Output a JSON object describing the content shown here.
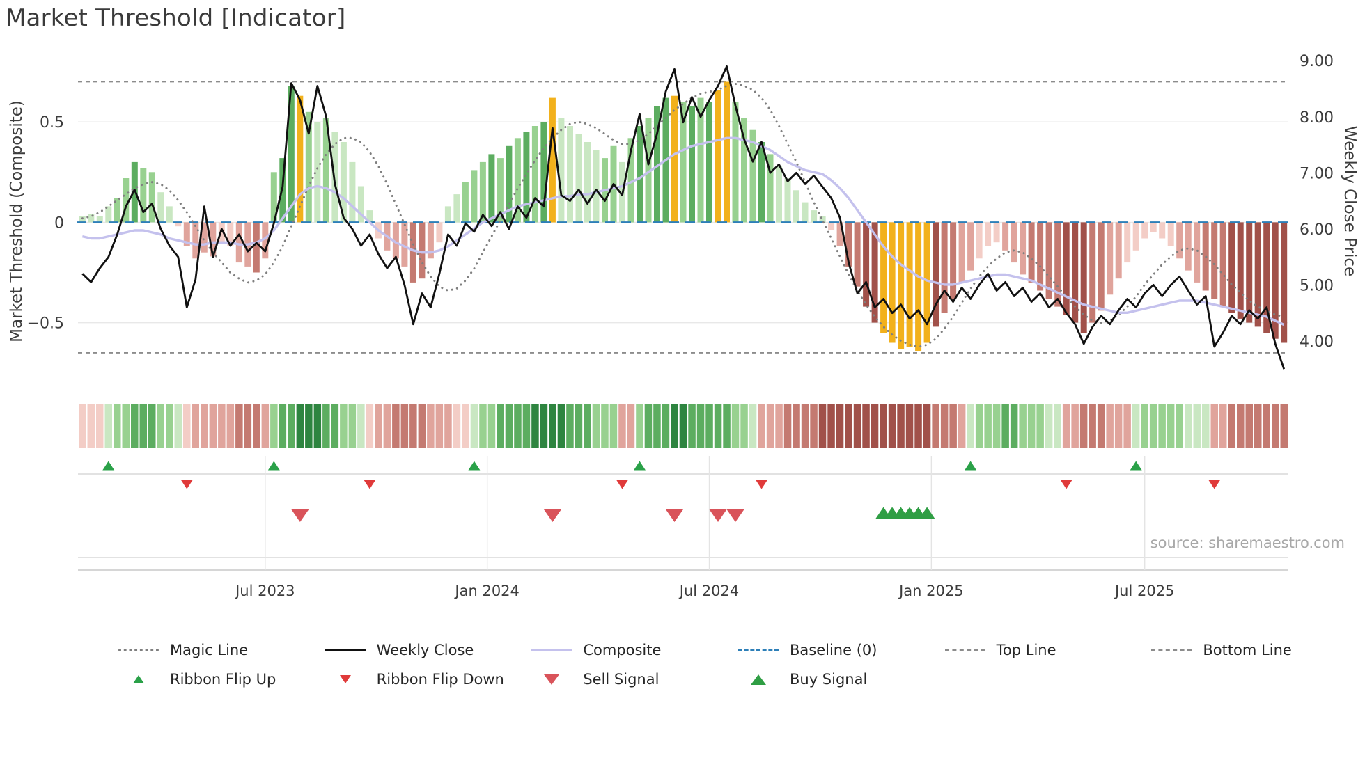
{
  "title": "Market Threshold [Indicator]",
  "source_text": "source: sharemaestro.com",
  "axes": {
    "left_title": "Market Threshold (Composite)",
    "right_title": "Weekly Close Price",
    "left_ticks": [
      {
        "v": 0.5,
        "label": "0.5"
      },
      {
        "v": 0,
        "label": "0"
      },
      {
        "v": -0.5,
        "label": "−0.5"
      }
    ],
    "right_ticks": [
      {
        "v": 9,
        "label": "9.00"
      },
      {
        "v": 8,
        "label": "8.00"
      },
      {
        "v": 7,
        "label": "7.00"
      },
      {
        "v": 6,
        "label": "6.00"
      },
      {
        "v": 5,
        "label": "5.00"
      },
      {
        "v": 4,
        "label": "4.00"
      }
    ],
    "x_ticks": [
      {
        "i": 21,
        "label": "Jul 2023"
      },
      {
        "i": 46.5,
        "label": "Jan 2024"
      },
      {
        "i": 72,
        "label": "Jul 2024"
      },
      {
        "i": 97.5,
        "label": "Jan 2025"
      },
      {
        "i": 122,
        "label": "Jul 2025"
      }
    ]
  },
  "colors": {
    "palette": {
      "g1": "#c9e7c2",
      "g2": "#98d190",
      "g3": "#5cad60",
      "g4": "#2e8540",
      "r1": "#f3cdc6",
      "r2": "#e0a49c",
      "r3": "#c47a71",
      "r4": "#a1514a",
      "gold": "#f2b11c"
    },
    "weekly_close_line": "#111111",
    "composite_line": "#c4c1ed",
    "magic_line": "#7f7f7f",
    "baseline": "#2d7fb8",
    "top_bottom_line": "#8c8c8c",
    "grid": "#e8e8e8",
    "separator": "#d9d9d9",
    "axis_spine": "#c9c9c9",
    "vgrid": "#e4e4e4",
    "tick_text": "#3d3d3d",
    "flip_up": "#2aa148",
    "flip_down": "#e03a3a",
    "sell": "#d9535a",
    "buy": "#2f9e44"
  },
  "legend": {
    "row1": [
      {
        "label": "Magic Line",
        "slug": "magic-line",
        "kind": "dotted",
        "color": "#7f7f7f"
      },
      {
        "label": "Weekly Close",
        "slug": "weekly-close",
        "kind": "solid",
        "color": "#111111"
      },
      {
        "label": "Composite",
        "slug": "composite",
        "kind": "solid",
        "color": "#c4c1ed"
      },
      {
        "label": "Baseline (0)",
        "slug": "baseline-0",
        "kind": "dashed",
        "color": "#2d7fb8"
      },
      {
        "label": "Top Line",
        "slug": "top-line",
        "kind": "dashed-fine",
        "color": "#8c8c8c"
      },
      {
        "label": "Bottom Line",
        "slug": "bottom-line",
        "kind": "dashed-fine",
        "color": "#8c8c8c"
      }
    ],
    "row2": [
      {
        "label": "Ribbon Flip Up",
        "slug": "ribbon-flip-up",
        "kind": "tri-up",
        "color": "#2aa148",
        "size": "small"
      },
      {
        "label": "Ribbon Flip Down",
        "slug": "ribbon-flip-down",
        "kind": "tri-down",
        "color": "#e03a3a",
        "size": "small"
      },
      {
        "label": "Sell Signal",
        "slug": "sell-signal",
        "kind": "tri-down",
        "color": "#d9535a",
        "size": "large"
      },
      {
        "label": "Buy Signal",
        "slug": "buy-signal",
        "kind": "tri-up",
        "color": "#2f9e44",
        "size": "large"
      }
    ]
  },
  "chart_data": {
    "type": "bar",
    "subtype": "weekly indicator panel with line overlays, trend ribbon and signal markers",
    "title": "Market Threshold [Indicator]",
    "ylabel_left": "Market Threshold (Composite)",
    "ylabel_right": "Weekly Close Price",
    "x_unit": "week",
    "n_points": 139,
    "left_ylim": [
      -0.82,
      0.83
    ],
    "right_ylim": [
      3.18,
      9.09
    ],
    "top_line": 0.7,
    "bottom_line": -0.65,
    "baseline": 0,
    "threshold_bars": {
      "values": [
        0.03,
        0.04,
        0.03,
        0.08,
        0.12,
        0.22,
        0.3,
        0.27,
        0.25,
        0.15,
        0.08,
        -0.02,
        -0.12,
        -0.18,
        -0.15,
        -0.17,
        -0.1,
        -0.12,
        -0.2,
        -0.22,
        -0.25,
        -0.18,
        0.25,
        0.32,
        0.68,
        0.63,
        0.55,
        0.5,
        0.52,
        0.45,
        0.4,
        0.3,
        0.18,
        0.06,
        -0.08,
        -0.14,
        -0.18,
        -0.22,
        -0.3,
        -0.28,
        -0.18,
        -0.1,
        0.08,
        0.14,
        0.2,
        0.26,
        0.3,
        0.34,
        0.32,
        0.38,
        0.42,
        0.45,
        0.48,
        0.5,
        0.62,
        0.52,
        0.48,
        0.44,
        0.4,
        0.36,
        0.32,
        0.38,
        0.3,
        0.42,
        0.48,
        0.52,
        0.58,
        0.62,
        0.63,
        0.6,
        0.58,
        0.62,
        0.6,
        0.66,
        0.7,
        0.6,
        0.52,
        0.46,
        0.4,
        0.34,
        0.28,
        0.22,
        0.16,
        0.1,
        0.06,
        0.03,
        -0.04,
        -0.12,
        -0.22,
        -0.32,
        -0.42,
        -0.5,
        -0.55,
        -0.6,
        -0.63,
        -0.62,
        -0.64,
        -0.6,
        -0.52,
        -0.45,
        -0.38,
        -0.3,
        -0.24,
        -0.18,
        -0.12,
        -0.1,
        -0.14,
        -0.2,
        -0.26,
        -0.3,
        -0.34,
        -0.38,
        -0.42,
        -0.46,
        -0.5,
        -0.55,
        -0.5,
        -0.44,
        -0.36,
        -0.28,
        -0.2,
        -0.14,
        -0.08,
        -0.05,
        -0.08,
        -0.12,
        -0.18,
        -0.24,
        -0.3,
        -0.34,
        -0.38,
        -0.42,
        -0.45,
        -0.48,
        -0.5,
        -0.52,
        -0.55,
        -0.58,
        -0.6
      ],
      "tones": [
        "g1",
        "g1",
        "g1",
        "g1",
        "g2",
        "g2",
        "g3",
        "g2",
        "g2",
        "g1",
        "g1",
        "r1",
        "r2",
        "r2",
        "r2",
        "r2",
        "r1",
        "r1",
        "r2",
        "r2",
        "r3",
        "r2",
        "g2",
        "g3",
        "g3",
        "gold",
        "g2",
        "g1",
        "g2",
        "g1",
        "g1",
        "g1",
        "g1",
        "g1",
        "r1",
        "r2",
        "r2",
        "r2",
        "r3",
        "r3",
        "r2",
        "r1",
        "g1",
        "g1",
        "g2",
        "g2",
        "g2",
        "g3",
        "g2",
        "g3",
        "g2",
        "g3",
        "g2",
        "g3",
        "gold",
        "g1",
        "g1",
        "g1",
        "g1",
        "g1",
        "g2",
        "g2",
        "g1",
        "g2",
        "g3",
        "g2",
        "g3",
        "g3",
        "gold",
        "g2",
        "g3",
        "g2",
        "g3",
        "gold",
        "gold",
        "g2",
        "g2",
        "g2",
        "g3",
        "g2",
        "g1",
        "g1",
        "g1",
        "g1",
        "g1",
        "g1",
        "r1",
        "r2",
        "r3",
        "r3",
        "r4",
        "r4",
        "gold",
        "gold",
        "gold",
        "gold",
        "gold",
        "gold",
        "r4",
        "r3",
        "r3",
        "r2",
        "r2",
        "r1",
        "r1",
        "r1",
        "r2",
        "r2",
        "r2",
        "r3",
        "r3",
        "r3",
        "r3",
        "r4",
        "r4",
        "r4",
        "r3",
        "r3",
        "r2",
        "r2",
        "r1",
        "r1",
        "r1",
        "r1",
        "r1",
        "r1",
        "r2",
        "r2",
        "r2",
        "r3",
        "r3",
        "r3",
        "r4",
        "r4",
        "r4",
        "r4",
        "r4",
        "r4",
        "r4"
      ]
    },
    "series": [
      {
        "name": "Weekly Close",
        "axis": "right",
        "values": [
          5.2,
          5.05,
          5.3,
          5.5,
          5.9,
          6.4,
          6.7,
          6.3,
          6.45,
          6.0,
          5.7,
          5.5,
          4.6,
          5.1,
          6.4,
          5.5,
          6.0,
          5.7,
          5.9,
          5.6,
          5.75,
          5.6,
          6.1,
          6.75,
          8.6,
          8.3,
          7.7,
          8.55,
          8.0,
          6.8,
          6.2,
          6.0,
          5.7,
          5.9,
          5.55,
          5.3,
          5.5,
          5.0,
          4.3,
          4.85,
          4.6,
          5.2,
          5.9,
          5.7,
          6.1,
          5.95,
          6.25,
          6.05,
          6.3,
          6.0,
          6.4,
          6.2,
          6.55,
          6.4,
          7.8,
          6.6,
          6.5,
          6.7,
          6.45,
          6.7,
          6.5,
          6.8,
          6.6,
          7.4,
          8.05,
          7.15,
          7.7,
          8.45,
          8.85,
          7.9,
          8.35,
          8.0,
          8.3,
          8.55,
          8.9,
          8.2,
          7.6,
          7.2,
          7.55,
          7.0,
          7.15,
          6.85,
          7.0,
          6.8,
          6.95,
          6.75,
          6.55,
          6.2,
          5.4,
          4.85,
          5.05,
          4.6,
          4.75,
          4.5,
          4.65,
          4.4,
          4.55,
          4.3,
          4.65,
          4.9,
          4.7,
          4.95,
          4.75,
          5.0,
          5.2,
          4.9,
          5.05,
          4.8,
          4.95,
          4.7,
          4.85,
          4.6,
          4.75,
          4.5,
          4.3,
          3.95,
          4.25,
          4.45,
          4.3,
          4.55,
          4.75,
          4.6,
          4.85,
          5.0,
          4.8,
          5.0,
          5.15,
          4.9,
          4.65,
          4.8,
          3.9,
          4.15,
          4.45,
          4.3,
          4.55,
          4.4,
          4.6,
          3.95,
          3.5
        ]
      },
      {
        "name": "Composite",
        "axis": "left",
        "values": [
          -0.07,
          -0.08,
          -0.08,
          -0.07,
          -0.06,
          -0.05,
          -0.04,
          -0.04,
          -0.05,
          -0.06,
          -0.08,
          -0.09,
          -0.1,
          -0.11,
          -0.11,
          -0.1,
          -0.1,
          -0.1,
          -0.11,
          -0.11,
          -0.1,
          -0.08,
          -0.04,
          0.02,
          0.08,
          0.14,
          0.17,
          0.18,
          0.17,
          0.15,
          0.12,
          0.08,
          0.04,
          0.0,
          -0.04,
          -0.07,
          -0.1,
          -0.12,
          -0.14,
          -0.15,
          -0.15,
          -0.14,
          -0.12,
          -0.09,
          -0.06,
          -0.03,
          0.0,
          0.02,
          0.04,
          0.06,
          0.08,
          0.09,
          0.1,
          0.11,
          0.12,
          0.13,
          0.13,
          0.14,
          0.14,
          0.15,
          0.16,
          0.17,
          0.18,
          0.2,
          0.22,
          0.25,
          0.28,
          0.31,
          0.34,
          0.36,
          0.38,
          0.39,
          0.4,
          0.41,
          0.42,
          0.42,
          0.41,
          0.4,
          0.38,
          0.36,
          0.33,
          0.3,
          0.28,
          0.26,
          0.25,
          0.24,
          0.21,
          0.17,
          0.12,
          0.06,
          0.0,
          -0.06,
          -0.12,
          -0.17,
          -0.21,
          -0.24,
          -0.27,
          -0.29,
          -0.3,
          -0.31,
          -0.31,
          -0.3,
          -0.29,
          -0.28,
          -0.27,
          -0.26,
          -0.26,
          -0.27,
          -0.28,
          -0.29,
          -0.31,
          -0.33,
          -0.35,
          -0.37,
          -0.39,
          -0.41,
          -0.42,
          -0.43,
          -0.44,
          -0.45,
          -0.45,
          -0.44,
          -0.43,
          -0.42,
          -0.41,
          -0.4,
          -0.39,
          -0.39,
          -0.39,
          -0.4,
          -0.41,
          -0.42,
          -0.43,
          -0.44,
          -0.45,
          -0.46,
          -0.47,
          -0.49,
          -0.51
        ]
      },
      {
        "name": "Magic Line",
        "axis": "left",
        "values": [
          0.02,
          0.03,
          0.05,
          0.08,
          0.11,
          0.14,
          0.17,
          0.19,
          0.2,
          0.19,
          0.16,
          0.11,
          0.05,
          -0.02,
          -0.09,
          -0.15,
          -0.2,
          -0.25,
          -0.28,
          -0.3,
          -0.29,
          -0.26,
          -0.2,
          -0.12,
          -0.02,
          0.08,
          0.18,
          0.27,
          0.34,
          0.39,
          0.42,
          0.42,
          0.4,
          0.35,
          0.28,
          0.19,
          0.09,
          -0.01,
          -0.11,
          -0.2,
          -0.27,
          -0.32,
          -0.34,
          -0.33,
          -0.29,
          -0.23,
          -0.15,
          -0.07,
          0.01,
          0.09,
          0.17,
          0.24,
          0.31,
          0.37,
          0.42,
          0.46,
          0.49,
          0.5,
          0.49,
          0.47,
          0.44,
          0.41,
          0.39,
          0.39,
          0.41,
          0.44,
          0.48,
          0.52,
          0.56,
          0.59,
          0.62,
          0.64,
          0.65,
          0.66,
          0.68,
          0.69,
          0.68,
          0.66,
          0.62,
          0.56,
          0.48,
          0.39,
          0.3,
          0.2,
          0.1,
          0.01,
          -0.08,
          -0.17,
          -0.26,
          -0.34,
          -0.41,
          -0.47,
          -0.52,
          -0.56,
          -0.59,
          -0.61,
          -0.62,
          -0.61,
          -0.58,
          -0.53,
          -0.47,
          -0.4,
          -0.33,
          -0.27,
          -0.22,
          -0.18,
          -0.15,
          -0.14,
          -0.15,
          -0.18,
          -0.22,
          -0.27,
          -0.32,
          -0.37,
          -0.42,
          -0.46,
          -0.49,
          -0.5,
          -0.49,
          -0.46,
          -0.42,
          -0.37,
          -0.31,
          -0.26,
          -0.21,
          -0.17,
          -0.14,
          -0.13,
          -0.14,
          -0.17,
          -0.21,
          -0.26,
          -0.31,
          -0.35,
          -0.39,
          -0.42,
          -0.44,
          -0.46,
          -0.47
        ]
      }
    ],
    "ribbon": [
      "r1",
      "r1",
      "r1",
      "g1",
      "g2",
      "g2",
      "g3",
      "g3",
      "g3",
      "g2",
      "g2",
      "g1",
      "r1",
      "r2",
      "r2",
      "r2",
      "r2",
      "r2",
      "r3",
      "r3",
      "r3",
      "r2",
      "g2",
      "g3",
      "g3",
      "g4",
      "g4",
      "g4",
      "g3",
      "g3",
      "g2",
      "g2",
      "g1",
      "r1",
      "r2",
      "r2",
      "r3",
      "r3",
      "r3",
      "r3",
      "r2",
      "r2",
      "r2",
      "r1",
      "r1",
      "g1",
      "g2",
      "g2",
      "g3",
      "g3",
      "g3",
      "g3",
      "g4",
      "g4",
      "g4",
      "g4",
      "g3",
      "g3",
      "g3",
      "g2",
      "g2",
      "g2",
      "r2",
      "r2",
      "g2",
      "g3",
      "g3",
      "g3",
      "g4",
      "g4",
      "g3",
      "g3",
      "g3",
      "g3",
      "g3",
      "g2",
      "g2",
      "g1",
      "r2",
      "r2",
      "r2",
      "r3",
      "r3",
      "r3",
      "r3",
      "r4",
      "r4",
      "r4",
      "r4",
      "r4",
      "r4",
      "r4",
      "r4",
      "r4",
      "r4",
      "r4",
      "r4",
      "r4",
      "r3",
      "r3",
      "r3",
      "r2",
      "g1",
      "g2",
      "g2",
      "g2",
      "g3",
      "g3",
      "g2",
      "g2",
      "g2",
      "g1",
      "g1",
      "r2",
      "r2",
      "r3",
      "r3",
      "r3",
      "r2",
      "r2",
      "r2",
      "g1",
      "g2",
      "g2",
      "g2",
      "g2",
      "g2",
      "g1",
      "g1",
      "g1",
      "r2",
      "r2",
      "r3",
      "r3",
      "r3",
      "r3",
      "r3",
      "r3",
      "r3"
    ],
    "signals": {
      "ribbon_flip_up": [
        3,
        22,
        45,
        64,
        102,
        121
      ],
      "ribbon_flip_down": [
        12,
        33,
        62,
        78,
        113,
        130
      ],
      "sell": [
        25,
        54,
        68,
        73,
        75
      ],
      "buy": [
        92,
        93,
        94,
        95,
        96,
        97
      ]
    },
    "legend_position": "bottom",
    "grid": "light horizontal at ±0.5, dashed top/bottom threshold lines, dashed blue baseline at 0"
  }
}
